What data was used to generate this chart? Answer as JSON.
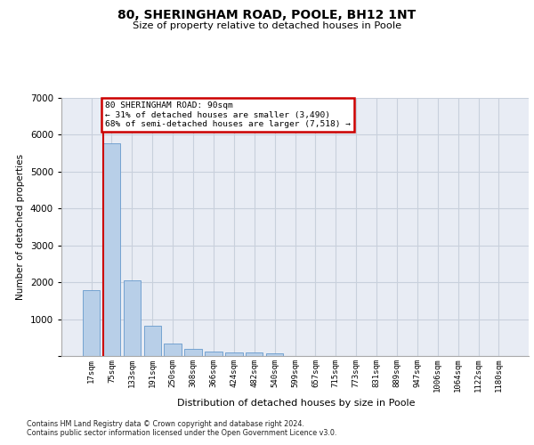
{
  "title": "80, SHERINGHAM ROAD, POOLE, BH12 1NT",
  "subtitle": "Size of property relative to detached houses in Poole",
  "xlabel": "Distribution of detached houses by size in Poole",
  "ylabel": "Number of detached properties",
  "bar_labels": [
    "17sqm",
    "75sqm",
    "133sqm",
    "191sqm",
    "250sqm",
    "308sqm",
    "366sqm",
    "424sqm",
    "482sqm",
    "540sqm",
    "599sqm",
    "657sqm",
    "715sqm",
    "773sqm",
    "831sqm",
    "889sqm",
    "947sqm",
    "1006sqm",
    "1064sqm",
    "1122sqm",
    "1180sqm"
  ],
  "bar_heights": [
    1780,
    5780,
    2060,
    820,
    340,
    185,
    115,
    105,
    95,
    75,
    0,
    0,
    0,
    0,
    0,
    0,
    0,
    0,
    0,
    0,
    0
  ],
  "bar_color": "#b8cfe8",
  "bar_edge_color": "#6699cc",
  "ylim": [
    0,
    7000
  ],
  "yticks": [
    0,
    1000,
    2000,
    3000,
    4000,
    5000,
    6000,
    7000
  ],
  "property_bin_index": 1,
  "annotation_title": "80 SHERINGHAM ROAD: 90sqm",
  "annotation_line1": "← 31% of detached houses are smaller (3,490)",
  "annotation_line2": "68% of semi-detached houses are larger (7,518) →",
  "annotation_box_facecolor": "#ffffff",
  "annotation_border_color": "#cc0000",
  "vline_color": "#cc0000",
  "grid_color": "#c8d0dc",
  "bg_color": "#e8ecf4",
  "footer_line1": "Contains HM Land Registry data © Crown copyright and database right 2024.",
  "footer_line2": "Contains public sector information licensed under the Open Government Licence v3.0."
}
